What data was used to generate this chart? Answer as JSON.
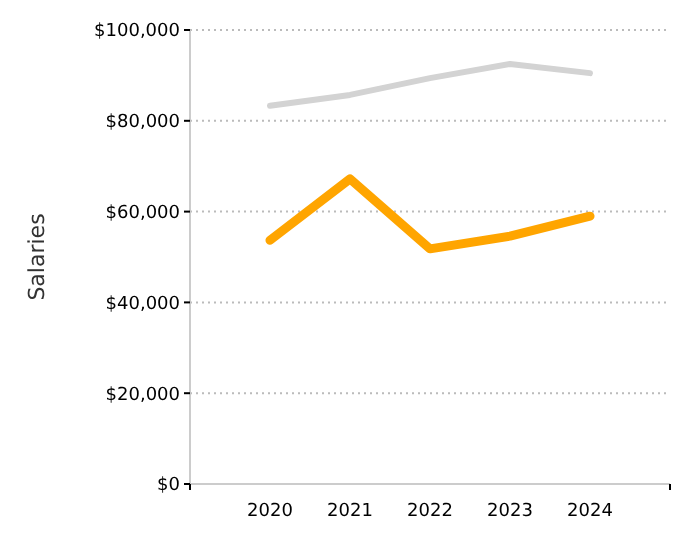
{
  "chart_data": {
    "type": "line",
    "ylabel": "Salaries",
    "x": [
      2020,
      2021,
      2022,
      2023,
      2024
    ],
    "series": [
      {
        "color": "#d3d3d3",
        "values": [
          83300,
          85700,
          89400,
          92500,
          90500
        ]
      },
      {
        "color": "#ffa500",
        "values": [
          53700,
          67200,
          51800,
          54600,
          59000
        ]
      }
    ],
    "xlim": [
      2019,
      2025
    ],
    "xticks": [
      {
        "value": 2019,
        "label": null
      },
      2020,
      2021,
      2022,
      2023,
      2024,
      {
        "value": 2025,
        "label": null
      }
    ],
    "ylim": [
      0,
      100000
    ],
    "yticks": [
      {
        "value": 0,
        "label": "$0"
      },
      {
        "value": 20000,
        "label": "$20,000"
      },
      {
        "value": 40000,
        "label": "$40,000"
      },
      {
        "value": 60000,
        "label": "$60,000"
      },
      {
        "value": 80000,
        "label": "$80,000"
      },
      {
        "value": 100000,
        "label": "$100,000"
      }
    ],
    "grid": "y"
  }
}
